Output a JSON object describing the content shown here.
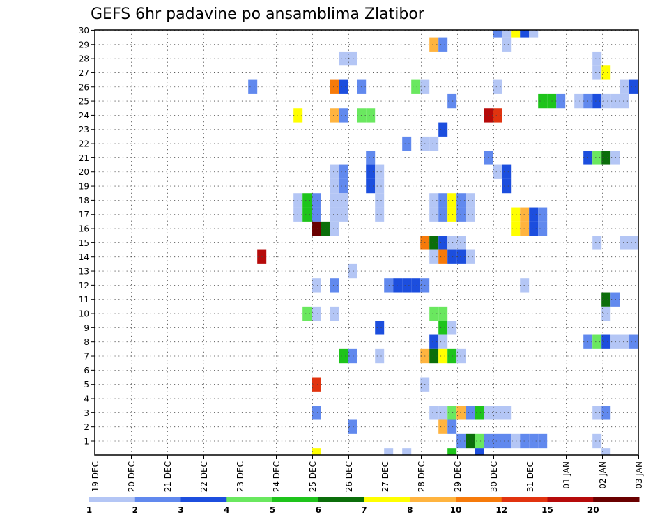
{
  "chart_data": {
    "type": "heatmap",
    "title": "GEFS 6hr padavine po ansamblima Zlatibor",
    "xlabel": "",
    "ylabel": "",
    "x_tick_labels": [
      "19 DEC",
      "20 DEC",
      "21 DEC",
      "22 DEC",
      "23 DEC",
      "24 DEC",
      "25 DEC",
      "26 DEC",
      "27 DEC",
      "28 DEC",
      "29 DEC",
      "30 DEC",
      "31 DEC",
      "01 JAN",
      "02 JAN",
      "03 JAN"
    ],
    "x_unit": "days since 19 DEC",
    "xlim": [
      0,
      15
    ],
    "y_tick_labels": [
      "1",
      "2",
      "3",
      "4",
      "5",
      "6",
      "7",
      "8",
      "9",
      "10",
      "11",
      "12",
      "13",
      "14",
      "15",
      "16",
      "17",
      "18",
      "19",
      "20",
      "21",
      "22",
      "23",
      "24",
      "25",
      "26",
      "27",
      "28",
      "29",
      "30"
    ],
    "ylim": [
      0,
      30
    ],
    "grid": true,
    "colorbar": {
      "labels": [
        "1",
        "2",
        "3",
        "4",
        "5",
        "6",
        "7",
        "8",
        "10",
        "12",
        "15",
        "20"
      ],
      "colors": [
        "#b4c6f5",
        "#6189ee",
        "#1c4ede",
        "#6ae85f",
        "#1ec41b",
        "#0b6e0a",
        "#ffff00",
        "#ffb43f",
        "#f67a0a",
        "#e1330f",
        "#b60a0a",
        "#6a0000"
      ]
    },
    "cells": [
      {
        "y": 30,
        "x": 11.1,
        "c": 2
      },
      {
        "y": 30,
        "x": 11.35,
        "c": 1
      },
      {
        "y": 30,
        "x": 11.6,
        "c": 7
      },
      {
        "y": 30,
        "x": 11.85,
        "c": 3
      },
      {
        "y": 30,
        "x": 12.1,
        "c": 1
      },
      {
        "y": 29,
        "x": 9.35,
        "c": 8
      },
      {
        "y": 29,
        "x": 9.6,
        "c": 2
      },
      {
        "y": 29,
        "x": 11.35,
        "c": 1
      },
      {
        "y": 28,
        "x": 6.85,
        "c": 1
      },
      {
        "y": 28,
        "x": 7.1,
        "c": 1
      },
      {
        "y": 28,
        "x": 13.85,
        "c": 1
      },
      {
        "y": 27,
        "x": 13.85,
        "c": 1
      },
      {
        "y": 27,
        "x": 14.1,
        "c": 7
      },
      {
        "y": 26,
        "x": 4.35,
        "c": 2
      },
      {
        "y": 26,
        "x": 6.6,
        "c": 9
      },
      {
        "y": 26,
        "x": 6.85,
        "c": 3
      },
      {
        "y": 26,
        "x": 7.35,
        "c": 2
      },
      {
        "y": 26,
        "x": 8.85,
        "c": 4
      },
      {
        "y": 26,
        "x": 9.1,
        "c": 1
      },
      {
        "y": 26,
        "x": 11.1,
        "c": 1
      },
      {
        "y": 26,
        "x": 14.6,
        "c": 1
      },
      {
        "y": 26,
        "x": 14.85,
        "c": 3
      },
      {
        "y": 25,
        "x": 9.85,
        "c": 2
      },
      {
        "y": 25,
        "x": 12.35,
        "c": 5
      },
      {
        "y": 25,
        "x": 12.6,
        "c": 5
      },
      {
        "y": 25,
        "x": 12.85,
        "c": 2
      },
      {
        "y": 25,
        "x": 13.35,
        "c": 1
      },
      {
        "y": 25,
        "x": 13.6,
        "c": 2
      },
      {
        "y": 25,
        "x": 13.85,
        "c": 3
      },
      {
        "y": 25,
        "x": 14.1,
        "c": 1
      },
      {
        "y": 25,
        "x": 14.35,
        "c": 1
      },
      {
        "y": 25,
        "x": 14.6,
        "c": 1
      },
      {
        "y": 24,
        "x": 5.6,
        "c": 7
      },
      {
        "y": 24,
        "x": 6.6,
        "c": 8
      },
      {
        "y": 24,
        "x": 6.85,
        "c": 2
      },
      {
        "y": 24,
        "x": 7.35,
        "c": 4
      },
      {
        "y": 24,
        "x": 7.6,
        "c": 4
      },
      {
        "y": 24,
        "x": 10.85,
        "c": 11
      },
      {
        "y": 24,
        "x": 11.1,
        "c": 10
      },
      {
        "y": 23,
        "x": 9.6,
        "c": 3
      },
      {
        "y": 22,
        "x": 8.6,
        "c": 2
      },
      {
        "y": 22,
        "x": 9.1,
        "c": 1
      },
      {
        "y": 22,
        "x": 9.35,
        "c": 1
      },
      {
        "y": 21,
        "x": 7.6,
        "c": 2
      },
      {
        "y": 21,
        "x": 10.85,
        "c": 2
      },
      {
        "y": 21,
        "x": 13.6,
        "c": 3
      },
      {
        "y": 21,
        "x": 13.85,
        "c": 4
      },
      {
        "y": 21,
        "x": 14.1,
        "c": 6
      },
      {
        "y": 21,
        "x": 14.35,
        "c": 1
      },
      {
        "y": 20,
        "x": 6.6,
        "c": 1
      },
      {
        "y": 20,
        "x": 6.85,
        "c": 2
      },
      {
        "y": 20,
        "x": 7.6,
        "c": 3
      },
      {
        "y": 20,
        "x": 7.85,
        "c": 1
      },
      {
        "y": 20,
        "x": 11.1,
        "c": 1
      },
      {
        "y": 20,
        "x": 11.35,
        "c": 3
      },
      {
        "y": 19,
        "x": 6.6,
        "c": 1
      },
      {
        "y": 19,
        "x": 6.85,
        "c": 2
      },
      {
        "y": 19,
        "x": 7.6,
        "c": 3
      },
      {
        "y": 19,
        "x": 7.85,
        "c": 1
      },
      {
        "y": 19,
        "x": 11.35,
        "c": 3
      },
      {
        "y": 18,
        "x": 5.6,
        "c": 1
      },
      {
        "y": 18,
        "x": 5.85,
        "c": 5
      },
      {
        "y": 18,
        "x": 6.1,
        "c": 2
      },
      {
        "y": 18,
        "x": 6.6,
        "c": 1
      },
      {
        "y": 18,
        "x": 6.85,
        "c": 1
      },
      {
        "y": 18,
        "x": 7.85,
        "c": 1
      },
      {
        "y": 18,
        "x": 9.35,
        "c": 1
      },
      {
        "y": 18,
        "x": 9.6,
        "c": 2
      },
      {
        "y": 18,
        "x": 9.85,
        "c": 7
      },
      {
        "y": 18,
        "x": 10.1,
        "c": 2
      },
      {
        "y": 18,
        "x": 10.35,
        "c": 1
      },
      {
        "y": 17,
        "x": 5.6,
        "c": 1
      },
      {
        "y": 17,
        "x": 5.85,
        "c": 5
      },
      {
        "y": 17,
        "x": 6.1,
        "c": 2
      },
      {
        "y": 17,
        "x": 6.6,
        "c": 1
      },
      {
        "y": 17,
        "x": 6.85,
        "c": 1
      },
      {
        "y": 17,
        "x": 7.85,
        "c": 1
      },
      {
        "y": 17,
        "x": 9.35,
        "c": 1
      },
      {
        "y": 17,
        "x": 9.6,
        "c": 2
      },
      {
        "y": 17,
        "x": 9.85,
        "c": 7
      },
      {
        "y": 17,
        "x": 10.1,
        "c": 2
      },
      {
        "y": 17,
        "x": 10.35,
        "c": 1
      },
      {
        "y": 17,
        "x": 11.6,
        "c": 7
      },
      {
        "y": 17,
        "x": 11.85,
        "c": 8
      },
      {
        "y": 17,
        "x": 12.1,
        "c": 3
      },
      {
        "y": 17,
        "x": 12.35,
        "c": 2
      },
      {
        "y": 16,
        "x": 6.1,
        "c": 12
      },
      {
        "y": 16,
        "x": 6.35,
        "c": 6
      },
      {
        "y": 16,
        "x": 6.6,
        "c": 1
      },
      {
        "y": 16,
        "x": 11.6,
        "c": 7
      },
      {
        "y": 16,
        "x": 11.85,
        "c": 8
      },
      {
        "y": 16,
        "x": 12.1,
        "c": 3
      },
      {
        "y": 16,
        "x": 12.35,
        "c": 2
      },
      {
        "y": 15,
        "x": 9.1,
        "c": 9
      },
      {
        "y": 15,
        "x": 9.35,
        "c": 6
      },
      {
        "y": 15,
        "x": 9.6,
        "c": 3
      },
      {
        "y": 15,
        "x": 9.85,
        "c": 1
      },
      {
        "y": 15,
        "x": 10.1,
        "c": 1
      },
      {
        "y": 15,
        "x": 13.85,
        "c": 1
      },
      {
        "y": 15,
        "x": 14.6,
        "c": 1
      },
      {
        "y": 15,
        "x": 14.85,
        "c": 1
      },
      {
        "y": 14,
        "x": 4.6,
        "c": 11
      },
      {
        "y": 14,
        "x": 9.35,
        "c": 1
      },
      {
        "y": 14,
        "x": 9.6,
        "c": 9
      },
      {
        "y": 14,
        "x": 9.85,
        "c": 3
      },
      {
        "y": 14,
        "x": 10.1,
        "c": 3
      },
      {
        "y": 14,
        "x": 10.35,
        "c": 1
      },
      {
        "y": 13,
        "x": 7.1,
        "c": 1
      },
      {
        "y": 12,
        "x": 6.1,
        "c": 1
      },
      {
        "y": 12,
        "x": 6.6,
        "c": 2
      },
      {
        "y": 12,
        "x": 8.1,
        "c": 2
      },
      {
        "y": 12,
        "x": 8.35,
        "c": 3
      },
      {
        "y": 12,
        "x": 8.6,
        "c": 3
      },
      {
        "y": 12,
        "x": 8.85,
        "c": 3
      },
      {
        "y": 12,
        "x": 9.1,
        "c": 2
      },
      {
        "y": 12,
        "x": 11.85,
        "c": 1
      },
      {
        "y": 11,
        "x": 14.1,
        "c": 6
      },
      {
        "y": 11,
        "x": 14.35,
        "c": 2
      },
      {
        "y": 10,
        "x": 5.85,
        "c": 4
      },
      {
        "y": 10,
        "x": 6.1,
        "c": 1
      },
      {
        "y": 10,
        "x": 6.6,
        "c": 1
      },
      {
        "y": 10,
        "x": 9.35,
        "c": 4
      },
      {
        "y": 10,
        "x": 9.6,
        "c": 4
      },
      {
        "y": 10,
        "x": 14.1,
        "c": 1
      },
      {
        "y": 9,
        "x": 7.85,
        "c": 3
      },
      {
        "y": 9,
        "x": 9.6,
        "c": 5
      },
      {
        "y": 9,
        "x": 9.85,
        "c": 1
      },
      {
        "y": 8,
        "x": 9.35,
        "c": 3
      },
      {
        "y": 8,
        "x": 9.6,
        "c": 1
      },
      {
        "y": 8,
        "x": 13.6,
        "c": 2
      },
      {
        "y": 8,
        "x": 13.85,
        "c": 4
      },
      {
        "y": 8,
        "x": 14.1,
        "c": 3
      },
      {
        "y": 8,
        "x": 14.35,
        "c": 1
      },
      {
        "y": 8,
        "x": 14.6,
        "c": 1
      },
      {
        "y": 8,
        "x": 14.85,
        "c": 2
      },
      {
        "y": 7,
        "x": 6.85,
        "c": 5
      },
      {
        "y": 7,
        "x": 7.1,
        "c": 2
      },
      {
        "y": 7,
        "x": 7.85,
        "c": 1
      },
      {
        "y": 7,
        "x": 9.1,
        "c": 8
      },
      {
        "y": 7,
        "x": 9.35,
        "c": 6
      },
      {
        "y": 7,
        "x": 9.6,
        "c": 7
      },
      {
        "y": 7,
        "x": 9.85,
        "c": 5
      },
      {
        "y": 7,
        "x": 10.1,
        "c": 1
      },
      {
        "y": 5,
        "x": 6.1,
        "c": 10
      },
      {
        "y": 5,
        "x": 9.1,
        "c": 1
      },
      {
        "y": 3,
        "x": 6.1,
        "c": 2
      },
      {
        "y": 3,
        "x": 9.35,
        "c": 1
      },
      {
        "y": 3,
        "x": 9.6,
        "c": 1
      },
      {
        "y": 3,
        "x": 9.85,
        "c": 4
      },
      {
        "y": 3,
        "x": 10.1,
        "c": 8
      },
      {
        "y": 3,
        "x": 10.35,
        "c": 2
      },
      {
        "y": 3,
        "x": 10.6,
        "c": 5
      },
      {
        "y": 3,
        "x": 10.85,
        "c": 1
      },
      {
        "y": 3,
        "x": 11.1,
        "c": 1
      },
      {
        "y": 3,
        "x": 11.35,
        "c": 1
      },
      {
        "y": 3,
        "x": 13.85,
        "c": 1
      },
      {
        "y": 3,
        "x": 14.1,
        "c": 2
      },
      {
        "y": 2,
        "x": 7.1,
        "c": 2
      },
      {
        "y": 2,
        "x": 9.6,
        "c": 8
      },
      {
        "y": 2,
        "x": 9.85,
        "c": 2
      },
      {
        "y": 1,
        "x": 10.1,
        "c": 2
      },
      {
        "y": 1,
        "x": 10.35,
        "c": 6
      },
      {
        "y": 1,
        "x": 10.6,
        "c": 4
      },
      {
        "y": 1,
        "x": 10.85,
        "c": 2
      },
      {
        "y": 1,
        "x": 11.1,
        "c": 2
      },
      {
        "y": 1,
        "x": 11.35,
        "c": 2
      },
      {
        "y": 1,
        "x": 11.6,
        "c": 1
      },
      {
        "y": 1,
        "x": 11.85,
        "c": 2
      },
      {
        "y": 1,
        "x": 12.1,
        "c": 2
      },
      {
        "y": 1,
        "x": 12.35,
        "c": 2
      },
      {
        "y": 1,
        "x": 13.85,
        "c": 1
      },
      {
        "y": 0,
        "x": 6.1,
        "c": 7
      },
      {
        "y": 0,
        "x": 8.1,
        "c": 1
      },
      {
        "y": 0,
        "x": 8.6,
        "c": 1
      },
      {
        "y": 0,
        "x": 9.85,
        "c": 5
      },
      {
        "y": 0,
        "x": 10.6,
        "c": 3
      },
      {
        "y": 0,
        "x": 14.1,
        "c": 1
      }
    ]
  }
}
